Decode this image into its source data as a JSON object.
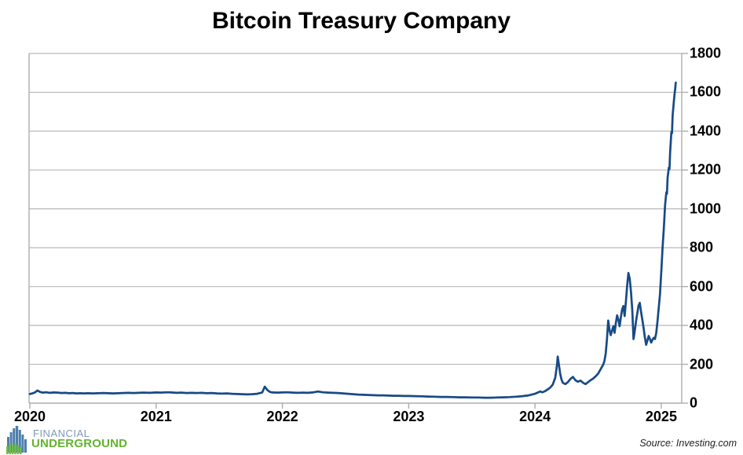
{
  "branding": {
    "line1": "FINANCIAL",
    "line2": "UNDERGROUND",
    "blue": "#4D7EAC",
    "green": "#6FBE44"
  },
  "chart_data": {
    "type": "line",
    "title": "Bitcoin Treasury Company",
    "source_note": "Source: Investing.com",
    "xlabel": "",
    "ylabel": "",
    "legend": "none",
    "grid": "horizontal",
    "y_axis_side": "right",
    "line_color": "#174A86",
    "grid_color": "#B8B8B8",
    "axis_color": "#ADADAD",
    "x_range": [
      2020,
      2025.162
    ],
    "y_range": [
      0,
      1800
    ],
    "x_ticks": [
      2020,
      2021,
      2022,
      2023,
      2024,
      2025
    ],
    "x_tick_labels": [
      "2020",
      "2021",
      "2022",
      "2023",
      "2024",
      "2025"
    ],
    "y_ticks": [
      0,
      200,
      400,
      600,
      800,
      1000,
      1200,
      1400,
      1600,
      1800
    ],
    "y_tick_labels": [
      "0",
      "200",
      "400",
      "600",
      "800",
      "1000",
      "1200",
      "1400",
      "1600",
      "1800"
    ],
    "series": [
      {
        "name": "Bitcoin Treasury Company",
        "points": [
          [
            2020.0,
            47
          ],
          [
            2020.02,
            50
          ],
          [
            2020.04,
            55
          ],
          [
            2020.06,
            65
          ],
          [
            2020.08,
            58
          ],
          [
            2020.1,
            54
          ],
          [
            2020.13,
            56
          ],
          [
            2020.16,
            53
          ],
          [
            2020.19,
            55
          ],
          [
            2020.22,
            54
          ],
          [
            2020.25,
            52
          ],
          [
            2020.28,
            53
          ],
          [
            2020.31,
            51
          ],
          [
            2020.34,
            52
          ],
          [
            2020.37,
            50
          ],
          [
            2020.4,
            51
          ],
          [
            2020.43,
            50
          ],
          [
            2020.46,
            51
          ],
          [
            2020.5,
            50
          ],
          [
            2020.54,
            51
          ],
          [
            2020.58,
            52
          ],
          [
            2020.62,
            51
          ],
          [
            2020.66,
            50
          ],
          [
            2020.7,
            51
          ],
          [
            2020.74,
            52
          ],
          [
            2020.78,
            53
          ],
          [
            2020.82,
            52
          ],
          [
            2020.86,
            53
          ],
          [
            2020.9,
            54
          ],
          [
            2020.95,
            53
          ],
          [
            2021.0,
            55
          ],
          [
            2021.04,
            54
          ],
          [
            2021.08,
            56
          ],
          [
            2021.12,
            55
          ],
          [
            2021.16,
            53
          ],
          [
            2021.2,
            54
          ],
          [
            2021.24,
            52
          ],
          [
            2021.28,
            53
          ],
          [
            2021.32,
            52
          ],
          [
            2021.36,
            53
          ],
          [
            2021.4,
            51
          ],
          [
            2021.44,
            52
          ],
          [
            2021.48,
            50
          ],
          [
            2021.52,
            49
          ],
          [
            2021.56,
            50
          ],
          [
            2021.6,
            48
          ],
          [
            2021.64,
            47
          ],
          [
            2021.68,
            46
          ],
          [
            2021.72,
            45
          ],
          [
            2021.76,
            46
          ],
          [
            2021.8,
            48
          ],
          [
            2021.84,
            55
          ],
          [
            2021.86,
            85
          ],
          [
            2021.88,
            68
          ],
          [
            2021.9,
            58
          ],
          [
            2021.92,
            55
          ],
          [
            2021.96,
            54
          ],
          [
            2022.0,
            55
          ],
          [
            2022.04,
            56
          ],
          [
            2022.08,
            54
          ],
          [
            2022.12,
            53
          ],
          [
            2022.16,
            54
          ],
          [
            2022.2,
            53
          ],
          [
            2022.24,
            55
          ],
          [
            2022.28,
            60
          ],
          [
            2022.32,
            56
          ],
          [
            2022.36,
            54
          ],
          [
            2022.4,
            53
          ],
          [
            2022.44,
            52
          ],
          [
            2022.48,
            50
          ],
          [
            2022.52,
            48
          ],
          [
            2022.56,
            46
          ],
          [
            2022.6,
            44
          ],
          [
            2022.64,
            43
          ],
          [
            2022.68,
            42
          ],
          [
            2022.72,
            41
          ],
          [
            2022.76,
            40
          ],
          [
            2022.8,
            40
          ],
          [
            2022.84,
            39
          ],
          [
            2022.88,
            38
          ],
          [
            2022.92,
            38
          ],
          [
            2022.96,
            37
          ],
          [
            2023.0,
            37
          ],
          [
            2023.05,
            36
          ],
          [
            2023.1,
            35
          ],
          [
            2023.15,
            34
          ],
          [
            2023.2,
            33
          ],
          [
            2023.25,
            32
          ],
          [
            2023.3,
            32
          ],
          [
            2023.35,
            31
          ],
          [
            2023.4,
            30
          ],
          [
            2023.45,
            30
          ],
          [
            2023.5,
            29
          ],
          [
            2023.55,
            29
          ],
          [
            2023.6,
            28
          ],
          [
            2023.65,
            28
          ],
          [
            2023.7,
            29
          ],
          [
            2023.75,
            30
          ],
          [
            2023.8,
            31
          ],
          [
            2023.85,
            33
          ],
          [
            2023.9,
            36
          ],
          [
            2023.95,
            40
          ],
          [
            2024.0,
            48
          ],
          [
            2024.02,
            54
          ],
          [
            2024.04,
            60
          ],
          [
            2024.06,
            56
          ],
          [
            2024.08,
            62
          ],
          [
            2024.1,
            70
          ],
          [
            2024.12,
            80
          ],
          [
            2024.14,
            95
          ],
          [
            2024.16,
            130
          ],
          [
            2024.175,
            200
          ],
          [
            2024.18,
            240
          ],
          [
            2024.19,
            195
          ],
          [
            2024.2,
            150
          ],
          [
            2024.21,
            122
          ],
          [
            2024.22,
            105
          ],
          [
            2024.24,
            98
          ],
          [
            2024.26,
            108
          ],
          [
            2024.28,
            124
          ],
          [
            2024.3,
            135
          ],
          [
            2024.32,
            118
          ],
          [
            2024.34,
            110
          ],
          [
            2024.36,
            116
          ],
          [
            2024.38,
            105
          ],
          [
            2024.4,
            98
          ],
          [
            2024.42,
            108
          ],
          [
            2024.44,
            118
          ],
          [
            2024.46,
            126
          ],
          [
            2024.48,
            138
          ],
          [
            2024.5,
            152
          ],
          [
            2024.52,
            175
          ],
          [
            2024.54,
            198
          ],
          [
            2024.55,
            218
          ],
          [
            2024.56,
            255
          ],
          [
            2024.57,
            330
          ],
          [
            2024.58,
            425
          ],
          [
            2024.59,
            378
          ],
          [
            2024.6,
            350
          ],
          [
            2024.61,
            372
          ],
          [
            2024.62,
            396
          ],
          [
            2024.63,
            362
          ],
          [
            2024.64,
            412
          ],
          [
            2024.65,
            452
          ],
          [
            2024.66,
            430
          ],
          [
            2024.67,
            396
          ],
          [
            2024.68,
            442
          ],
          [
            2024.69,
            482
          ],
          [
            2024.7,
            500
          ],
          [
            2024.71,
            448
          ],
          [
            2024.72,
            522
          ],
          [
            2024.73,
            604
          ],
          [
            2024.74,
            670
          ],
          [
            2024.75,
            640
          ],
          [
            2024.76,
            572
          ],
          [
            2024.77,
            480
          ],
          [
            2024.78,
            330
          ],
          [
            2024.79,
            372
          ],
          [
            2024.8,
            422
          ],
          [
            2024.81,
            462
          ],
          [
            2024.82,
            502
          ],
          [
            2024.83,
            516
          ],
          [
            2024.84,
            470
          ],
          [
            2024.85,
            430
          ],
          [
            2024.86,
            388
          ],
          [
            2024.87,
            340
          ],
          [
            2024.88,
            300
          ],
          [
            2024.89,
            322
          ],
          [
            2024.9,
            346
          ],
          [
            2024.91,
            330
          ],
          [
            2024.92,
            312
          ],
          [
            2024.93,
            326
          ],
          [
            2024.94,
            336
          ],
          [
            2024.95,
            330
          ],
          [
            2024.96,
            360
          ],
          [
            2024.97,
            420
          ],
          [
            2024.98,
            490
          ],
          [
            2024.99,
            560
          ],
          [
            2025.0,
            680
          ],
          [
            2025.01,
            800
          ],
          [
            2025.02,
            900
          ],
          [
            2025.03,
            1020
          ],
          [
            2025.04,
            1085
          ],
          [
            2025.045,
            1078
          ],
          [
            2025.05,
            1160
          ],
          [
            2025.06,
            1212
          ],
          [
            2025.065,
            1205
          ],
          [
            2025.07,
            1290
          ],
          [
            2025.08,
            1395
          ],
          [
            2025.085,
            1390
          ],
          [
            2025.09,
            1480
          ],
          [
            2025.1,
            1555
          ],
          [
            2025.105,
            1588
          ],
          [
            2025.11,
            1615
          ],
          [
            2025.115,
            1650
          ]
        ]
      }
    ]
  }
}
